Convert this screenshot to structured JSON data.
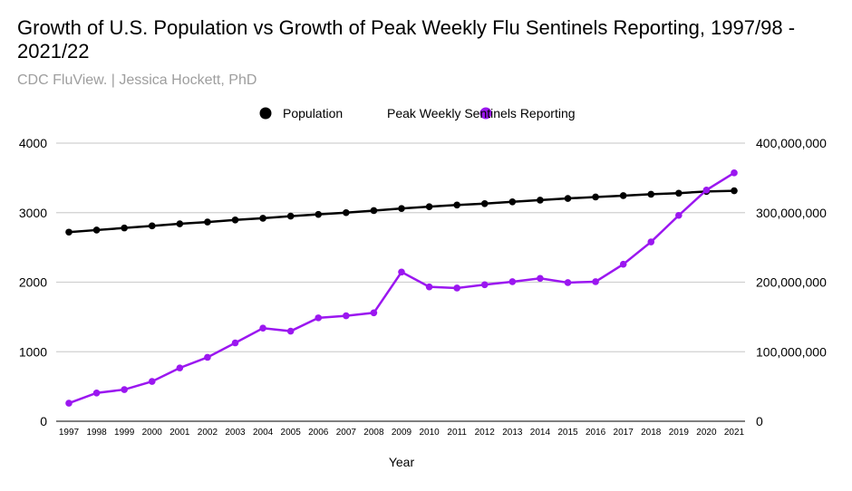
{
  "chart_data": {
    "type": "line",
    "title": "Growth of U.S. Population vs Growth of Peak Weekly Flu Sentinels Reporting, 1997/98 - 2021/22",
    "subtitle": "CDC FluView. | Jessica Hockett, PhD",
    "xlabel": "Year",
    "ylabel_left": "",
    "ylabel_right": "",
    "legend_position": "top",
    "grid": true,
    "categories": [
      "1997",
      "1998",
      "1999",
      "2000",
      "2001",
      "2002",
      "2003",
      "2004",
      "2005",
      "2006",
      "2007",
      "2008",
      "2009",
      "2010",
      "2011",
      "2012",
      "2013",
      "2014",
      "2015",
      "2016",
      "2017",
      "2018",
      "2019",
      "2020",
      "2021"
    ],
    "left_axis": {
      "range": [
        0,
        4000
      ],
      "ticks": [
        "0",
        "1000",
        "2000",
        "3000",
        "4000"
      ]
    },
    "right_axis": {
      "range": [
        0,
        400000000
      ],
      "ticks": [
        "0",
        "100,000,000",
        "200,000,000",
        "300,000,000",
        "400,000,000"
      ]
    },
    "series": [
      {
        "name": "Population",
        "axis": "right",
        "color": "#000000",
        "values": [
          272000000,
          275000000,
          278000000,
          281000000,
          284000000,
          286500000,
          289500000,
          292000000,
          295000000,
          297500000,
          300000000,
          303000000,
          306000000,
          308600000,
          311000000,
          313000000,
          315600000,
          318000000,
          320500000,
          322500000,
          324500000,
          326500000,
          328000000,
          330500000,
          331500000
        ]
      },
      {
        "name": "Peak Weekly Sentinels Reporting",
        "axis": "left",
        "color": "#9b17f0",
        "values": [
          260,
          407,
          455,
          572,
          767,
          919,
          1127,
          1339,
          1296,
          1487,
          1517,
          1560,
          2146,
          1933,
          1916,
          1964,
          2007,
          2055,
          1994,
          2007,
          2258,
          2579,
          2961,
          3325,
          3572
        ]
      }
    ]
  }
}
